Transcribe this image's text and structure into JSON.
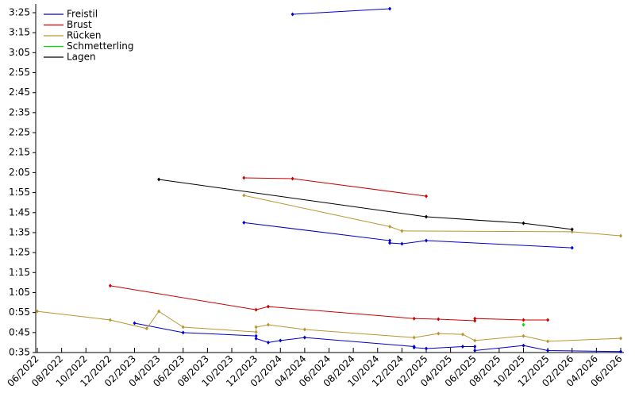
{
  "chart_data": {
    "type": "line",
    "xlim": [
      "2022-06",
      "2026-06"
    ],
    "xticks": [
      {
        "value": "2022-06",
        "label": "06/2022"
      },
      {
        "value": "2022-08",
        "label": "08/2022"
      },
      {
        "value": "2022-10",
        "label": "10/2022"
      },
      {
        "value": "2022-12",
        "label": "12/2022"
      },
      {
        "value": "2023-02",
        "label": "02/2023"
      },
      {
        "value": "2023-04",
        "label": "04/2023"
      },
      {
        "value": "2023-06",
        "label": "06/2023"
      },
      {
        "value": "2023-08",
        "label": "08/2023"
      },
      {
        "value": "2023-10",
        "label": "10/2023"
      },
      {
        "value": "2023-12",
        "label": "12/2023"
      },
      {
        "value": "2024-02",
        "label": "02/2024"
      },
      {
        "value": "2024-04",
        "label": "04/2024"
      },
      {
        "value": "2024-06",
        "label": "06/2024"
      },
      {
        "value": "2024-08",
        "label": "08/2024"
      },
      {
        "value": "2024-10",
        "label": "10/2024"
      },
      {
        "value": "2024-12",
        "label": "12/2024"
      },
      {
        "value": "2025-02",
        "label": "02/2025"
      },
      {
        "value": "2025-04",
        "label": "04/2025"
      },
      {
        "value": "2025-06",
        "label": "06/2025"
      },
      {
        "value": "2025-08",
        "label": "08/2025"
      },
      {
        "value": "2025-10",
        "label": "10/2025"
      },
      {
        "value": "2025-12",
        "label": "12/2025"
      },
      {
        "value": "2026-02",
        "label": "02/2026"
      },
      {
        "value": "2026-04",
        "label": "04/2026"
      },
      {
        "value": "2026-06",
        "label": "06/2026"
      }
    ],
    "ylim": [
      35,
      205
    ],
    "yticks": [
      {
        "value": 35,
        "label": "0:35"
      },
      {
        "value": 45,
        "label": "0:45"
      },
      {
        "value": 55,
        "label": "0:55"
      },
      {
        "value": 65,
        "label": "1:05"
      },
      {
        "value": 75,
        "label": "1:15"
      },
      {
        "value": 85,
        "label": "1:25"
      },
      {
        "value": 95,
        "label": "1:35"
      },
      {
        "value": 105,
        "label": "1:45"
      },
      {
        "value": 115,
        "label": "1:55"
      },
      {
        "value": 125,
        "label": "2:05"
      },
      {
        "value": 135,
        "label": "2:15"
      },
      {
        "value": 145,
        "label": "2:25"
      },
      {
        "value": 155,
        "label": "2:35"
      },
      {
        "value": 165,
        "label": "2:45"
      },
      {
        "value": 175,
        "label": "2:55"
      },
      {
        "value": 185,
        "label": "3:05"
      },
      {
        "value": 195,
        "label": "3:15"
      },
      {
        "value": 205,
        "label": "3:25"
      }
    ],
    "series": [
      {
        "name": "Freistil",
        "color": "#0000cc",
        "x": [
          "2024-03",
          "2024-11",
          null,
          "2023-11",
          "2024-11",
          "2024-11",
          "2024-12",
          "2025-02",
          "2026-02",
          null,
          "2023-02",
          "2023-06",
          "2023-12",
          "2023-12",
          "2024-01",
          "2024-02",
          "2024-04",
          "2025-01",
          "2025-01",
          "2025-02",
          "2025-05",
          "2025-06",
          "2025-06",
          "2025-10",
          "2025-12",
          "2026-06"
        ],
        "values": [
          204.2,
          207,
          null,
          100,
          91,
          89.8,
          89.4,
          91,
          87.4,
          null,
          49.7,
          45,
          43.3,
          42,
          40,
          41,
          42.5,
          38,
          37.5,
          37,
          38,
          38,
          36,
          38.5,
          36,
          35.5
        ]
      },
      {
        "name": "Brust",
        "color": "#cc0000",
        "x": [
          "2023-11",
          "2024-03",
          "2025-02",
          null,
          "2022-12",
          "2023-12",
          "2024-01",
          "2025-01",
          "2025-03",
          "2025-06",
          "2025-06",
          "2025-10",
          "2025-12"
        ],
        "values": [
          122.4,
          122,
          113.2,
          null,
          68.4,
          56.4,
          58,
          52,
          51.7,
          50.9,
          52,
          51.3,
          51.3
        ]
      },
      {
        "name": "Rücken",
        "color": "#b8962e",
        "x": [
          "2023-11",
          "2024-11",
          "2024-12",
          "2026-02",
          "2026-06",
          null,
          "2022-06",
          "2022-12",
          "2023-03",
          "2023-04",
          "2023-06",
          "2023-12",
          "2023-12",
          "2024-01",
          "2024-04",
          "2025-01",
          "2025-03",
          "2025-05",
          "2025-06",
          "2025-10",
          "2025-12",
          "2026-06"
        ],
        "values": [
          113.6,
          98,
          95.8,
          95.4,
          93.4,
          null,
          55.6,
          51.3,
          47,
          55.6,
          47.7,
          45.3,
          47.7,
          48.9,
          46.5,
          42.5,
          44.5,
          44.1,
          41,
          43.3,
          40.6,
          42.1
        ]
      },
      {
        "name": "Schmetterling",
        "color": "#00dd00",
        "x": [
          "2025-10"
        ],
        "values": [
          48.9
        ]
      },
      {
        "name": "Lagen",
        "color": "#000000",
        "x": [
          "2023-04",
          "2025-02",
          "2025-10",
          "2026-02"
        ],
        "values": [
          121.6,
          102.9,
          99.7,
          96.6
        ]
      }
    ]
  }
}
